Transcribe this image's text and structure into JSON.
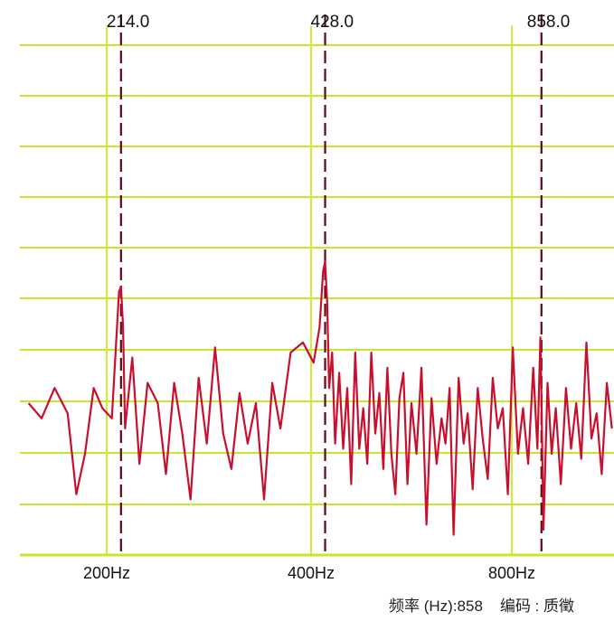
{
  "chart_data": {
    "type": "line",
    "x_ticks": [
      {
        "value": 200,
        "label": "200Hz"
      },
      {
        "value": 400,
        "label": "400Hz"
      },
      {
        "value": 800,
        "label": "800Hz"
      }
    ],
    "peak_markers": [
      {
        "value": 214,
        "label": "214.0"
      },
      {
        "value": 428,
        "label": "428.0"
      },
      {
        "value": 858,
        "label": "858.0"
      }
    ],
    "grid": true,
    "series": [
      {
        "color": "#c8102e",
        "points": [
          [
            110,
            0.3
          ],
          [
            125,
            0.27
          ],
          [
            140,
            0.33
          ],
          [
            155,
            0.28
          ],
          [
            165,
            0.12
          ],
          [
            175,
            0.2
          ],
          [
            185,
            0.33
          ],
          [
            195,
            0.29
          ],
          [
            205,
            0.27
          ],
          [
            212,
            0.52
          ],
          [
            214,
            0.53
          ],
          [
            216,
            0.45
          ],
          [
            218,
            0.25
          ],
          [
            225,
            0.39
          ],
          [
            232,
            0.18
          ],
          [
            240,
            0.34
          ],
          [
            250,
            0.3
          ],
          [
            258,
            0.16
          ],
          [
            266,
            0.34
          ],
          [
            274,
            0.24
          ],
          [
            282,
            0.11
          ],
          [
            290,
            0.35
          ],
          [
            298,
            0.22
          ],
          [
            306,
            0.41
          ],
          [
            314,
            0.24
          ],
          [
            322,
            0.17
          ],
          [
            330,
            0.32
          ],
          [
            338,
            0.22
          ],
          [
            346,
            0.3
          ],
          [
            354,
            0.11
          ],
          [
            362,
            0.34
          ],
          [
            370,
            0.25
          ],
          [
            380,
            0.4
          ],
          [
            392,
            0.42
          ],
          [
            405,
            0.38
          ],
          [
            417,
            0.45
          ],
          [
            424,
            0.56
          ],
          [
            428,
            0.58
          ],
          [
            432,
            0.5
          ],
          [
            436,
            0.33
          ],
          [
            442,
            0.4
          ],
          [
            448,
            0.22
          ],
          [
            456,
            0.36
          ],
          [
            464,
            0.21
          ],
          [
            472,
            0.33
          ],
          [
            480,
            0.14
          ],
          [
            488,
            0.4
          ],
          [
            496,
            0.21
          ],
          [
            504,
            0.29
          ],
          [
            512,
            0.18
          ],
          [
            520,
            0.4
          ],
          [
            528,
            0.24
          ],
          [
            536,
            0.32
          ],
          [
            544,
            0.17
          ],
          [
            552,
            0.37
          ],
          [
            560,
            0.2
          ],
          [
            568,
            0.12
          ],
          [
            576,
            0.31
          ],
          [
            584,
            0.36
          ],
          [
            592,
            0.14
          ],
          [
            600,
            0.3
          ],
          [
            610,
            0.2
          ],
          [
            620,
            0.37
          ],
          [
            630,
            0.06
          ],
          [
            640,
            0.31
          ],
          [
            650,
            0.18
          ],
          [
            660,
            0.27
          ],
          [
            668,
            0.22
          ],
          [
            676,
            0.33
          ],
          [
            684,
            0.04
          ],
          [
            694,
            0.35
          ],
          [
            704,
            0.22
          ],
          [
            712,
            0.28
          ],
          [
            722,
            0.13
          ],
          [
            732,
            0.33
          ],
          [
            742,
            0.23
          ],
          [
            752,
            0.15
          ],
          [
            762,
            0.35
          ],
          [
            772,
            0.25
          ],
          [
            782,
            0.29
          ],
          [
            792,
            0.12
          ],
          [
            802,
            0.41
          ],
          [
            812,
            0.2
          ],
          [
            822,
            0.29
          ],
          [
            832,
            0.18
          ],
          [
            842,
            0.37
          ],
          [
            850,
            0.21
          ],
          [
            856,
            0.43
          ],
          [
            858,
            0.31
          ],
          [
            862,
            0.05
          ],
          [
            870,
            0.34
          ],
          [
            878,
            0.2
          ],
          [
            886,
            0.29
          ],
          [
            896,
            0.14
          ],
          [
            906,
            0.33
          ],
          [
            916,
            0.21
          ],
          [
            926,
            0.3
          ],
          [
            936,
            0.19
          ],
          [
            946,
            0.42
          ],
          [
            956,
            0.23
          ],
          [
            966,
            0.28
          ],
          [
            976,
            0.16
          ],
          [
            986,
            0.34
          ],
          [
            996,
            0.25
          ]
        ]
      }
    ]
  },
  "readout": {
    "frequency_text": "频率 (Hz):858",
    "code_text": "编码 : 质徵"
  }
}
